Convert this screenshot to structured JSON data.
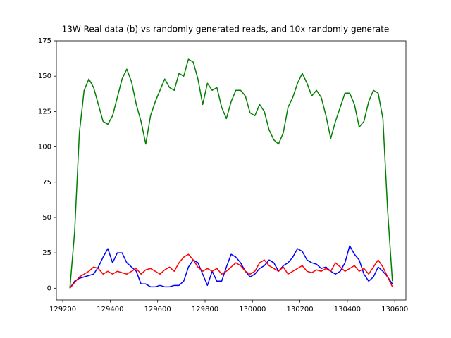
{
  "chart_data": {
    "type": "line",
    "title": "13W Real data (b) vs randomly generated reads, and 10x randomly generate",
    "x": [
      129230,
      129250,
      129270,
      129290,
      129310,
      129330,
      129350,
      129370,
      129390,
      129410,
      129430,
      129450,
      129470,
      129490,
      129510,
      129530,
      129550,
      129570,
      129590,
      129610,
      129630,
      129650,
      129670,
      129690,
      129710,
      129730,
      129750,
      129770,
      129790,
      129810,
      129830,
      129850,
      129870,
      129890,
      129910,
      129930,
      129950,
      129970,
      129990,
      130010,
      130030,
      130050,
      130070,
      130090,
      130110,
      130130,
      130150,
      130170,
      130190,
      130210,
      130230,
      130250,
      130270,
      130290,
      130310,
      130330,
      130350,
      130370,
      130390,
      130410,
      130430,
      130450,
      130470,
      130490,
      130510,
      130530,
      130550,
      130570,
      130590
    ],
    "series": [
      {
        "color": "#0000ff",
        "values": [
          0,
          5,
          7,
          8,
          9,
          10,
          15,
          22,
          28,
          18,
          25,
          25,
          18,
          15,
          12,
          3,
          3,
          1,
          1,
          2,
          1,
          1,
          2,
          2,
          5,
          15,
          20,
          18,
          10,
          2,
          12,
          5,
          5,
          15,
          24,
          22,
          18,
          12,
          8,
          10,
          14,
          16,
          20,
          18,
          12,
          16,
          18,
          22,
          28,
          26,
          20,
          18,
          17,
          14,
          15,
          12,
          10,
          12,
          18,
          30,
          24,
          20,
          10,
          5,
          8,
          15,
          12,
          8,
          3
        ]
      },
      {
        "color": "#ff0000",
        "values": [
          0,
          4,
          8,
          10,
          12,
          15,
          14,
          10,
          12,
          10,
          12,
          11,
          10,
          12,
          14,
          10,
          13,
          14,
          12,
          10,
          13,
          15,
          12,
          18,
          22,
          24,
          20,
          15,
          12,
          14,
          12,
          14,
          10,
          12,
          15,
          18,
          16,
          12,
          10,
          12,
          18,
          20,
          16,
          14,
          12,
          15,
          10,
          12,
          14,
          16,
          12,
          11,
          13,
          12,
          14,
          12,
          18,
          15,
          12,
          14,
          16,
          12,
          14,
          10,
          15,
          20,
          15,
          8,
          1
        ]
      },
      {
        "color": "#008000",
        "values": [
          0,
          40,
          110,
          140,
          148,
          142,
          130,
          118,
          116,
          122,
          135,
          148,
          155,
          146,
          130,
          118,
          102,
          122,
          132,
          140,
          148,
          142,
          140,
          152,
          150,
          162,
          160,
          148,
          130,
          145,
          140,
          142,
          128,
          120,
          132,
          140,
          140,
          136,
          124,
          122,
          130,
          125,
          112,
          105,
          102,
          110,
          128,
          135,
          145,
          152,
          145,
          136,
          140,
          135,
          122,
          106,
          118,
          128,
          138,
          138,
          130,
          114,
          118,
          132,
          140,
          138,
          120,
          55,
          5
        ]
      }
    ],
    "xlim": [
      129173,
      130647
    ],
    "xticks": [
      129200,
      129400,
      129600,
      129800,
      130000,
      130200,
      130400,
      130600
    ],
    "ylim": [
      -8.3,
      175
    ],
    "yticks": [
      0,
      25,
      50,
      75,
      100,
      125,
      150,
      175
    ]
  }
}
